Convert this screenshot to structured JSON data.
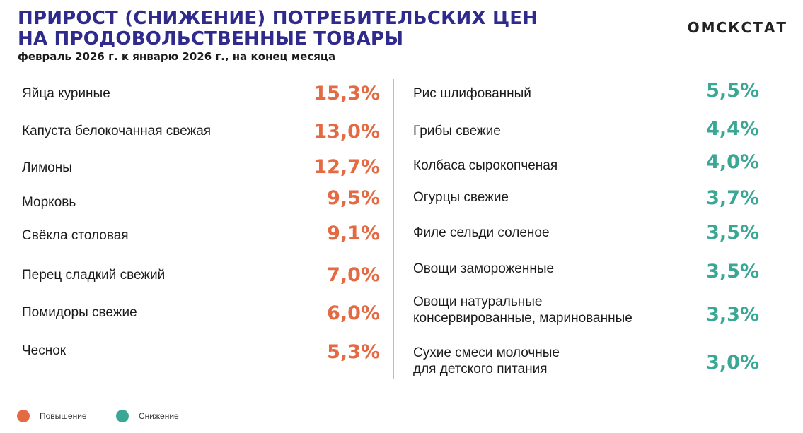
{
  "header": {
    "title_line1": "ПРИРОСТ (СНИЖЕНИЕ) ПОТРЕБИТЕЛЬСКИХ ЦЕН",
    "title_line2": "НА ПРОДОВОЛЬСТВЕННЫЕ ТОВАРЫ",
    "subtitle": "февраль 2026 г. к январю 2026 г., на конец месяца",
    "brand": "ОМСКСТАТ"
  },
  "colors": {
    "increase": "#e36a43",
    "decrease": "#3aa795",
    "title": "#2f2a8c"
  },
  "legend": [
    {
      "label": "Повышение",
      "color": "#e36a43"
    },
    {
      "label": "Снижение",
      "color": "#3aa795"
    }
  ],
  "chart_data": {
    "type": "table",
    "columns": [
      {
        "group": "Повышение",
        "rows": [
          {
            "label": "Яйца куриные",
            "value": "15,3%"
          },
          {
            "label": "Капуста белокочанная свежая",
            "value": "13,0%"
          },
          {
            "label": "Лимоны",
            "value": "12,7%"
          },
          {
            "label": "Морковь",
            "value": "9,5%"
          },
          {
            "label": "Свёкла столовая",
            "value": "9,1%"
          },
          {
            "label": "Перец сладкий свежий",
            "value": "7,0%"
          },
          {
            "label": "Помидоры свежие",
            "value": "6,0%"
          },
          {
            "label": "Чеснок",
            "value": "5,3%"
          }
        ]
      },
      {
        "group": "Снижение",
        "rows": [
          {
            "label": "Рис шлифованный",
            "value": "5,5%"
          },
          {
            "label": "Грибы свежие",
            "value": "4,4%"
          },
          {
            "label": "Колбаса сырокопченая",
            "value": "4,0%"
          },
          {
            "label": "Огурцы свежие",
            "value": "3,7%"
          },
          {
            "label": "Филе сельди соленое",
            "value": "3,5%"
          },
          {
            "label": "Овощи замороженные",
            "value": "3,5%"
          },
          {
            "label": "Овощи натуральные\nконсервированные, маринованные",
            "value": "3,3%"
          },
          {
            "label": "Сухие смеси молочные\nдля детского питания",
            "value": "3,0%"
          }
        ]
      }
    ]
  }
}
